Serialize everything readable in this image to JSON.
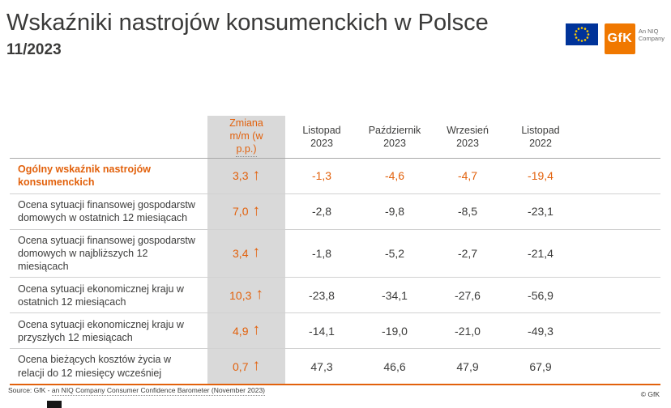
{
  "header": {
    "title": "Wskaźniki nastrojów konsumenckich w Polsce",
    "subtitle": "11/2023"
  },
  "logo": {
    "gfk": "GfK",
    "niq_line1": "An NIQ",
    "niq_line2": "Company"
  },
  "table": {
    "change_header_lines": [
      "Zmiana",
      "m/m (w",
      "p.p.)"
    ],
    "month_columns": [
      {
        "month": "Listopad",
        "year": "2023"
      },
      {
        "month": "Październik",
        "year": "2023"
      },
      {
        "month": "Wrzesień",
        "year": "2023"
      },
      {
        "month": "Listopad",
        "year": "2022"
      }
    ],
    "arrow": "↑"
  },
  "chart_data": {
    "type": "table",
    "title": "Wskaźniki nastrojów konsumenckich w Polsce",
    "period": "11/2023",
    "columns": [
      "Zmiana m/m (w p.p.)",
      "Listopad 2023",
      "Październik 2023",
      "Wrzesień 2023",
      "Listopad 2022"
    ],
    "rows": [
      {
        "indicator": "Ogólny wskaźnik nastrojów konsumenckich",
        "change_mm": 3.3,
        "values": [
          -1.3,
          -4.6,
          -4.7,
          -19.4
        ],
        "trend": "up",
        "highlight": true
      },
      {
        "indicator": "Ocena sytuacji finansowej gospodarstw domowych w ostatnich 12 miesiącach",
        "change_mm": 7.0,
        "values": [
          -2.8,
          -9.8,
          -8.5,
          -23.1
        ],
        "trend": "up",
        "highlight": false
      },
      {
        "indicator": "Ocena sytuacji finansowej gospodarstw domowych w najbliższych 12 miesiącach",
        "change_mm": 3.4,
        "values": [
          -1.8,
          -5.2,
          -2.7,
          -21.4
        ],
        "trend": "up",
        "highlight": false
      },
      {
        "indicator": "Ocena sytuacji ekonomicznej kraju w ostatnich 12 miesiącach",
        "change_mm": 10.3,
        "values": [
          -23.8,
          -34.1,
          -27.6,
          -56.9
        ],
        "trend": "up",
        "highlight": false
      },
      {
        "indicator": "Ocena sytuacji ekonomicznej kraju w przyszłych 12 miesiącach",
        "change_mm": 4.9,
        "values": [
          -14.1,
          -19.0,
          -21.0,
          -49.3
        ],
        "trend": "up",
        "highlight": false
      },
      {
        "indicator": "Ocena bieżących kosztów życia w relacji do 12 miesięcy wcześniej",
        "change_mm": 0.7,
        "values": [
          47.3,
          46.6,
          47.9,
          67.9
        ],
        "trend": "up",
        "highlight": false
      }
    ]
  },
  "footer": {
    "source_prefix": "Source: GfK - ",
    "source_tail": "an NIQ Company Consumer Confidence Barometer (November 2023)",
    "copyright": "© GfK"
  },
  "colors": {
    "accent_orange": "#e2610c",
    "logo_orange": "#f07800",
    "gray_column": "#d9d9d9",
    "eu_blue": "#003399",
    "star_yellow": "#ffcc00"
  }
}
